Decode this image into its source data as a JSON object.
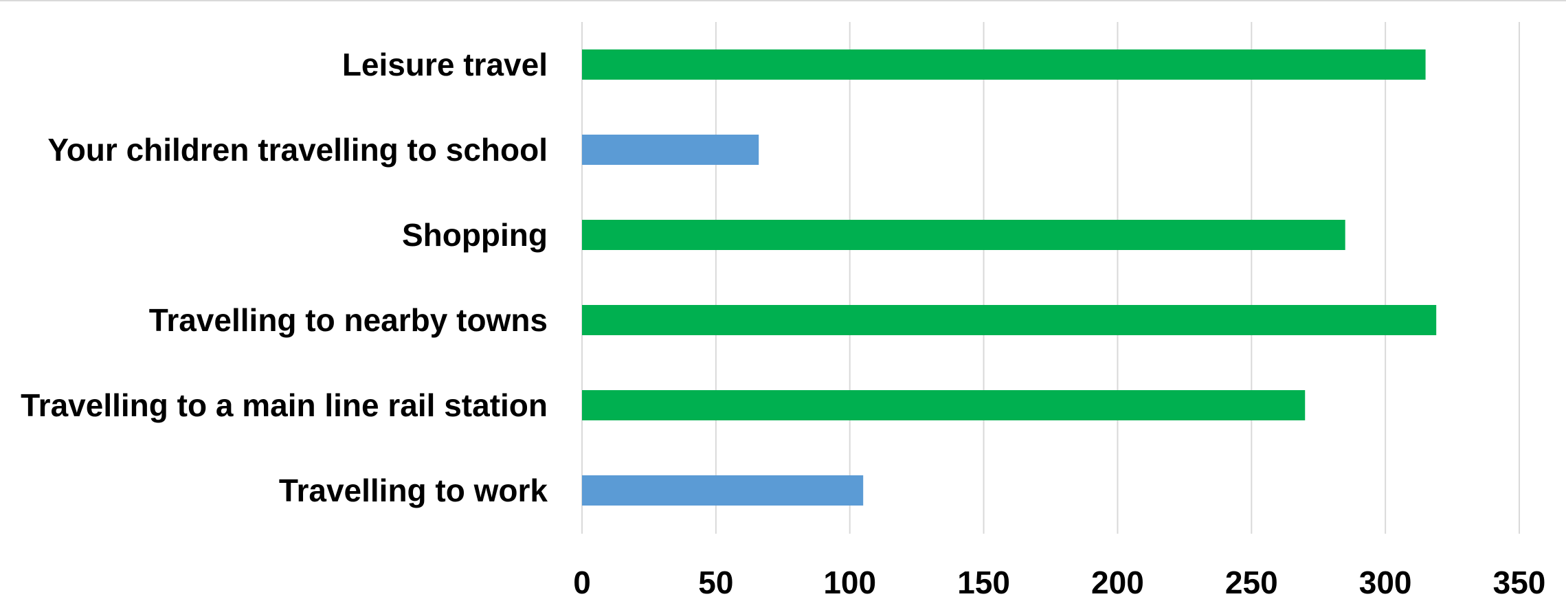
{
  "chart_data": {
    "type": "bar",
    "orientation": "horizontal",
    "categories": [
      "Leisure travel",
      "Your children travelling to school",
      "Shopping",
      "Travelling to nearby towns",
      "Travelling to a main line rail station",
      "Travelling to work"
    ],
    "values": [
      315,
      66,
      285,
      319,
      270,
      105
    ],
    "bar_colors": [
      "#00b050",
      "#5b9bd5",
      "#00b050",
      "#00b050",
      "#00b050",
      "#5b9bd5"
    ],
    "xlim": [
      0,
      350
    ],
    "xticks": [
      "0",
      "50",
      "100",
      "150",
      "200",
      "250",
      "300",
      "350"
    ],
    "grid": true,
    "legend": "none",
    "title": "",
    "xlabel": "",
    "ylabel": ""
  }
}
